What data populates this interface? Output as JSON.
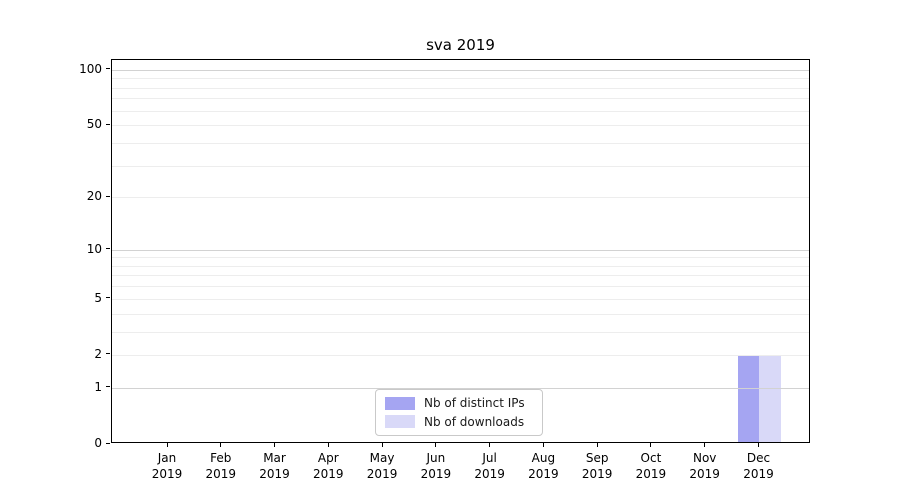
{
  "chart_data": {
    "type": "bar",
    "title": "sva 2019",
    "categories": [
      "Jan",
      "Feb",
      "Mar",
      "Apr",
      "May",
      "Jun",
      "Jul",
      "Aug",
      "Sep",
      "Oct",
      "Nov",
      "Dec"
    ],
    "category_year": "2019",
    "series": [
      {
        "name": "Nb of distinct IPs",
        "color": "#a5a5f2",
        "values": [
          0,
          0,
          0,
          0,
          0,
          0,
          0,
          0,
          0,
          0,
          0,
          2
        ]
      },
      {
        "name": "Nb of downloads",
        "color": "#d9d9f8",
        "values": [
          0,
          0,
          0,
          0,
          0,
          0,
          0,
          0,
          0,
          0,
          0,
          2
        ]
      }
    ],
    "yscale": "log1p",
    "ylim": [
      0,
      113
    ],
    "yticks": [
      0,
      1,
      2,
      5,
      10,
      20,
      50,
      100
    ],
    "ygrid_major": [
      1,
      10,
      100
    ],
    "ygrid_minor": [
      2,
      3,
      4,
      5,
      6,
      7,
      8,
      9,
      20,
      30,
      40,
      50,
      60,
      70,
      80,
      90
    ],
    "legend_position": "lower center",
    "colors": {
      "background": "#ffffff",
      "spine": "#000000",
      "grid_major": "#d2d2d2",
      "grid_minor": "#ededed",
      "text": "#000000"
    }
  }
}
